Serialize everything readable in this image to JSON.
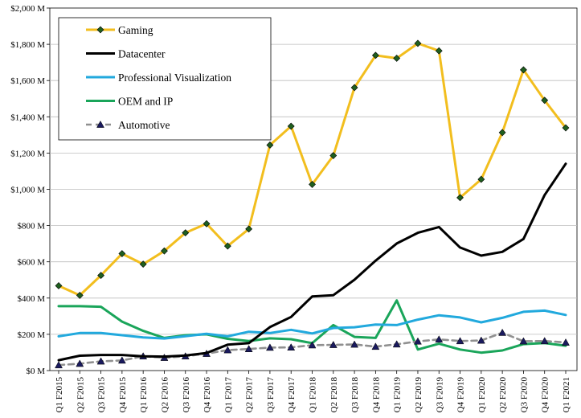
{
  "chart_data": {
    "type": "line",
    "title": "",
    "xlabel": "",
    "ylabel": "",
    "ylim": [
      0,
      2000
    ],
    "y_ticks": [
      "$0 M",
      "$200 M",
      "$400 M",
      "$600 M",
      "$800 M",
      "$1,000 M",
      "$1,200 M",
      "$1,400 M",
      "$1,600 M",
      "$1,800 M",
      "$2,000 M"
    ],
    "y_tick_values": [
      0,
      200,
      400,
      600,
      800,
      1000,
      1200,
      1400,
      1600,
      1800,
      2000
    ],
    "grid": "horizontal",
    "legend_position": "top-left",
    "categories": [
      "Q1 F2015",
      "Q2 F2015",
      "Q3 F2015",
      "Q4 F2015",
      "Q1 F2016",
      "Q2 F2016",
      "Q3 F2016",
      "Q4 F2016",
      "Q1 F2017",
      "Q2 F2017",
      "Q3 F2017",
      "Q4 F2017",
      "Q1 F2018",
      "Q2 F2018",
      "Q3 F2018",
      "Q4 F2018",
      "Q1 F2019",
      "Q2 F2019",
      "Q3 F2019",
      "Q4 F2019",
      "Q1 F2020",
      "Q2 F2020",
      "Q3 F2020",
      "Q4 F2020",
      "Q1 F2021"
    ],
    "series": [
      {
        "name": "Gaming",
        "color": "#f2be1e",
        "marker": "diamond",
        "marker_fill": "#1f5f1f",
        "dashed": false,
        "values": [
          468,
          415,
          525,
          645,
          587,
          660,
          760,
          810,
          687,
          781,
          1244,
          1348,
          1027,
          1186,
          1561,
          1739,
          1723,
          1805,
          1764,
          954,
          1055,
          1313,
          1659,
          1491,
          1339
        ]
      },
      {
        "name": "Datacenter",
        "color": "#000000",
        "marker": "none",
        "dashed": false,
        "values": [
          57,
          82,
          86,
          86,
          79,
          77,
          83,
          97,
          143,
          151,
          240,
          296,
          409,
          416,
          501,
          606,
          701,
          760,
          792,
          679,
          634,
          655,
          726,
          968,
          1141
        ]
      },
      {
        "name": "Professional Visualization",
        "color": "#22a9dd",
        "marker": "none",
        "dashed": false,
        "values": [
          189,
          207,
          207,
          195,
          183,
          177,
          190,
          203,
          189,
          214,
          207,
          225,
          205,
          235,
          239,
          254,
          251,
          281,
          305,
          293,
          266,
          291,
          324,
          331,
          307
        ]
      },
      {
        "name": "OEM and IP",
        "color": "#1aa55a",
        "marker": "none",
        "dashed": false,
        "values": [
          355,
          355,
          352,
          270,
          219,
          180,
          195,
          200,
          175,
          163,
          178,
          173,
          151,
          251,
          186,
          180,
          387,
          116,
          148,
          116,
          99,
          111,
          146,
          152,
          137
        ]
      },
      {
        "name": "Automotive",
        "color": "#909090",
        "marker": "triangle",
        "marker_fill": "#1a1a5e",
        "dashed": true,
        "values": [
          30,
          38,
          51,
          56,
          79,
          71,
          79,
          93,
          113,
          119,
          127,
          128,
          140,
          142,
          144,
          132,
          145,
          161,
          172,
          163,
          166,
          209,
          162,
          163,
          155
        ]
      }
    ]
  }
}
